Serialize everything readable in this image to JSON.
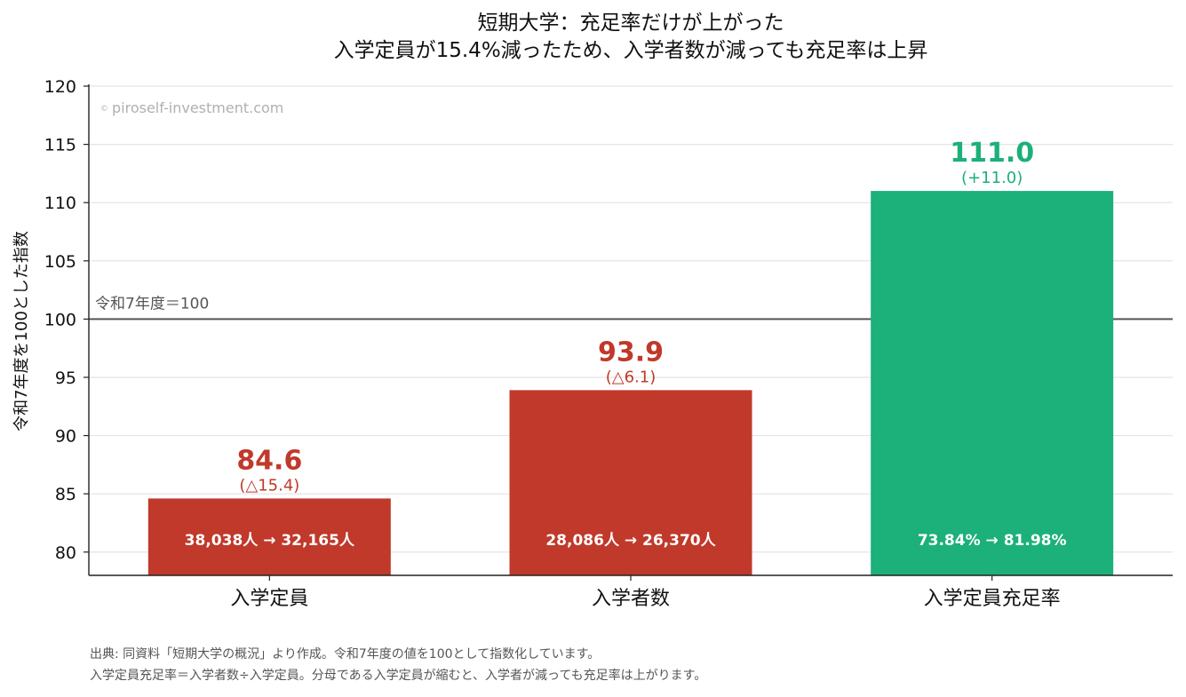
{
  "chart_data": {
    "type": "bar",
    "title_lines": [
      "短期大学：充足率だけが上がった",
      "入学定員が15.4%減ったため、入学者数が減っても充足率は上昇"
    ],
    "ylabel": "令和7年度を100とした指数",
    "ylim": [
      78,
      120
    ],
    "yticks": [
      80,
      85,
      90,
      95,
      100,
      105,
      110,
      115,
      120
    ],
    "grid": true,
    "categories": [
      "入学定員",
      "入学者数",
      "入学定員充足率"
    ],
    "values": [
      84.6,
      93.9,
      111.0
    ],
    "value_labels": [
      "84.6",
      "93.9",
      "111.0"
    ],
    "change_labels": [
      "(△15.4)",
      "(△6.1)",
      "(+11.0)"
    ],
    "inbar_labels": [
      "38,038人 → 32,165人",
      "28,086人 → 26,370人",
      "73.84% → 81.98%"
    ],
    "colors": [
      "#c0392b",
      "#c0392b",
      "#1cb07a"
    ],
    "reference_line": {
      "value": 100,
      "label": "令和7年度＝100",
      "color": "#555555"
    },
    "watermark": "piroself-investment.com",
    "watermark_symbol": "©",
    "footnotes": [
      "出典: 同資料「短期大学の概況」より作成。令和7年度の値を100として指数化しています。",
      "入学定員充足率＝入学者数÷入学定員。分母である入学定員が縮むと、入学者が減っても充足率は上がります。"
    ]
  }
}
